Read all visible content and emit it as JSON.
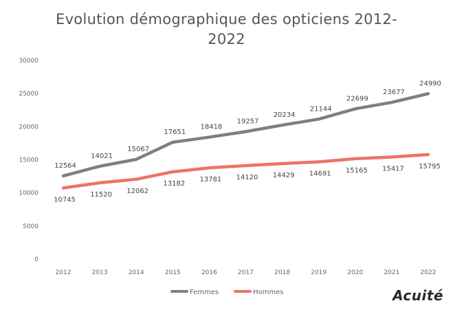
{
  "chart_data": {
    "type": "line",
    "title_line1": "Evolution démographique des opticiens 2012-",
    "title_line2": "2022",
    "x": [
      "2012",
      "2013",
      "2014",
      "2015",
      "2016",
      "2017",
      "2018",
      "2019",
      "2020",
      "2021",
      "2022"
    ],
    "y_ticks": [
      "0",
      "5000",
      "10000",
      "15000",
      "20000",
      "25000",
      "30000"
    ],
    "ylim": [
      0,
      30000
    ],
    "grid": false,
    "legend_position": "bottom",
    "series": [
      {
        "name": "Femmes",
        "color": "#7f7f7f",
        "values": [
          12564,
          14021,
          15067,
          17651,
          18418,
          19257,
          20234,
          21144,
          22699,
          23677,
          24990
        ],
        "labels": [
          "12564",
          "14021",
          "15067",
          "17651",
          "18418",
          "19257",
          "20234",
          "21144",
          "22699",
          "23677",
          "24990"
        ]
      },
      {
        "name": "Hommes",
        "color": "#ec7463",
        "values": [
          10745,
          11520,
          12062,
          13182,
          13781,
          14120,
          14429,
          14691,
          15165,
          15417,
          15795
        ],
        "labels": [
          "10745",
          "11520",
          "12062",
          "13182",
          "13781",
          "14120",
          "14429",
          "14691",
          "15165",
          "15417",
          "15795"
        ]
      }
    ]
  },
  "brand": {
    "logo_text": "Acuité"
  }
}
